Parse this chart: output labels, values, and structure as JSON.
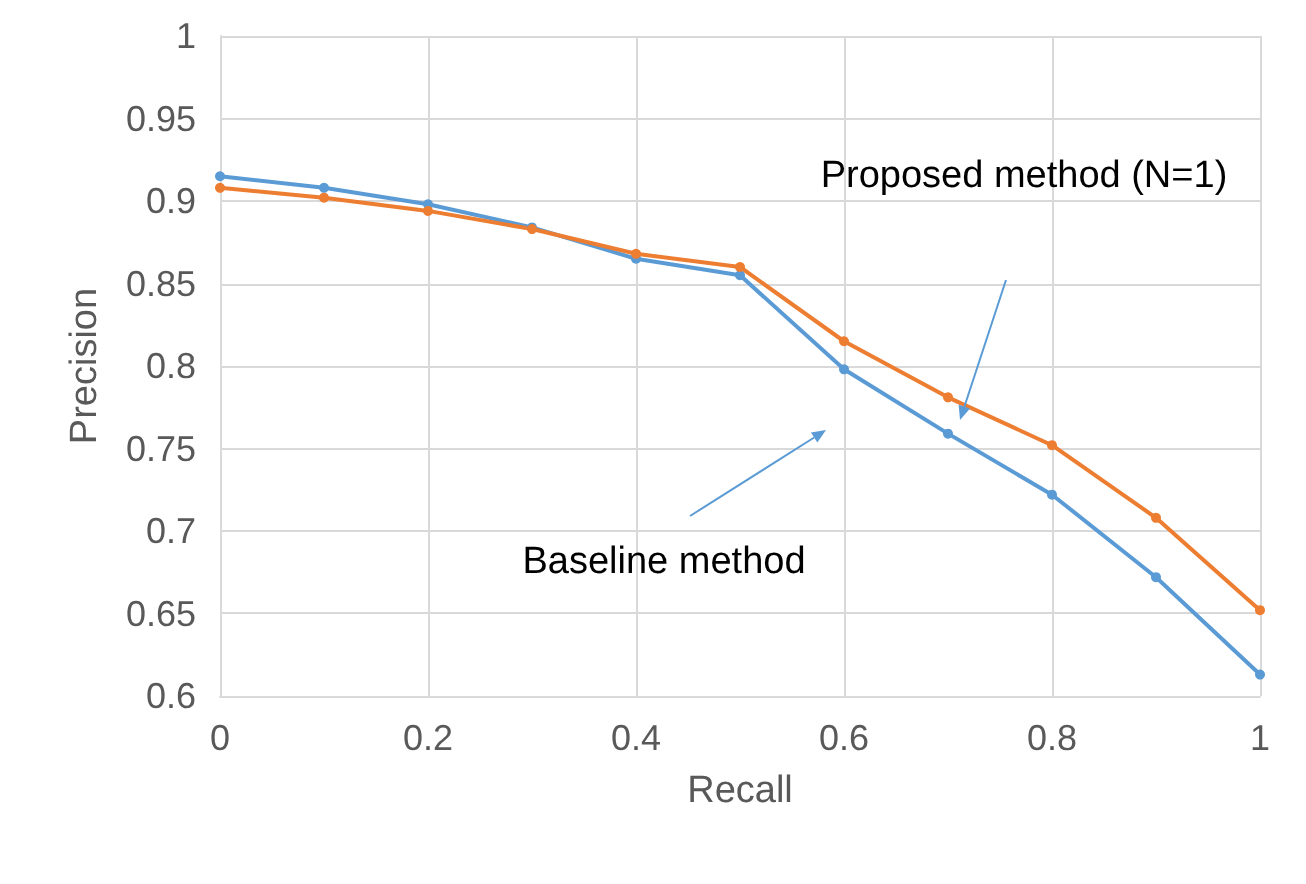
{
  "chart_data": {
    "type": "line",
    "xlabel": "Recall",
    "ylabel": "Precision",
    "x": [
      0,
      0.1,
      0.2,
      0.3,
      0.4,
      0.5,
      0.6,
      0.7,
      0.8,
      0.9,
      1
    ],
    "series": [
      {
        "color": "#5b9bd5",
        "values": [
          0.915,
          0.908,
          0.898,
          0.884,
          0.865,
          0.855,
          0.798,
          0.759,
          0.722,
          0.672,
          0.613
        ]
      },
      {
        "color": "#ed7d31",
        "values": [
          0.908,
          0.902,
          0.894,
          0.883,
          0.868,
          0.86,
          0.815,
          0.781,
          0.752,
          0.708,
          0.652
        ]
      }
    ],
    "xlim": [
      0,
      1
    ],
    "xticks": [
      0,
      0.2,
      0.4,
      0.6,
      0.8,
      1
    ],
    "ylim": [
      0.6,
      1
    ],
    "yticks": [
      0.6,
      0.65,
      0.7,
      0.75,
      0.8,
      0.85,
      0.9,
      0.95,
      1
    ],
    "grid": true,
    "marker": "circle",
    "line_style": "solid",
    "annotations": [
      "Proposed method (N=1)",
      "Baseline method"
    ]
  }
}
